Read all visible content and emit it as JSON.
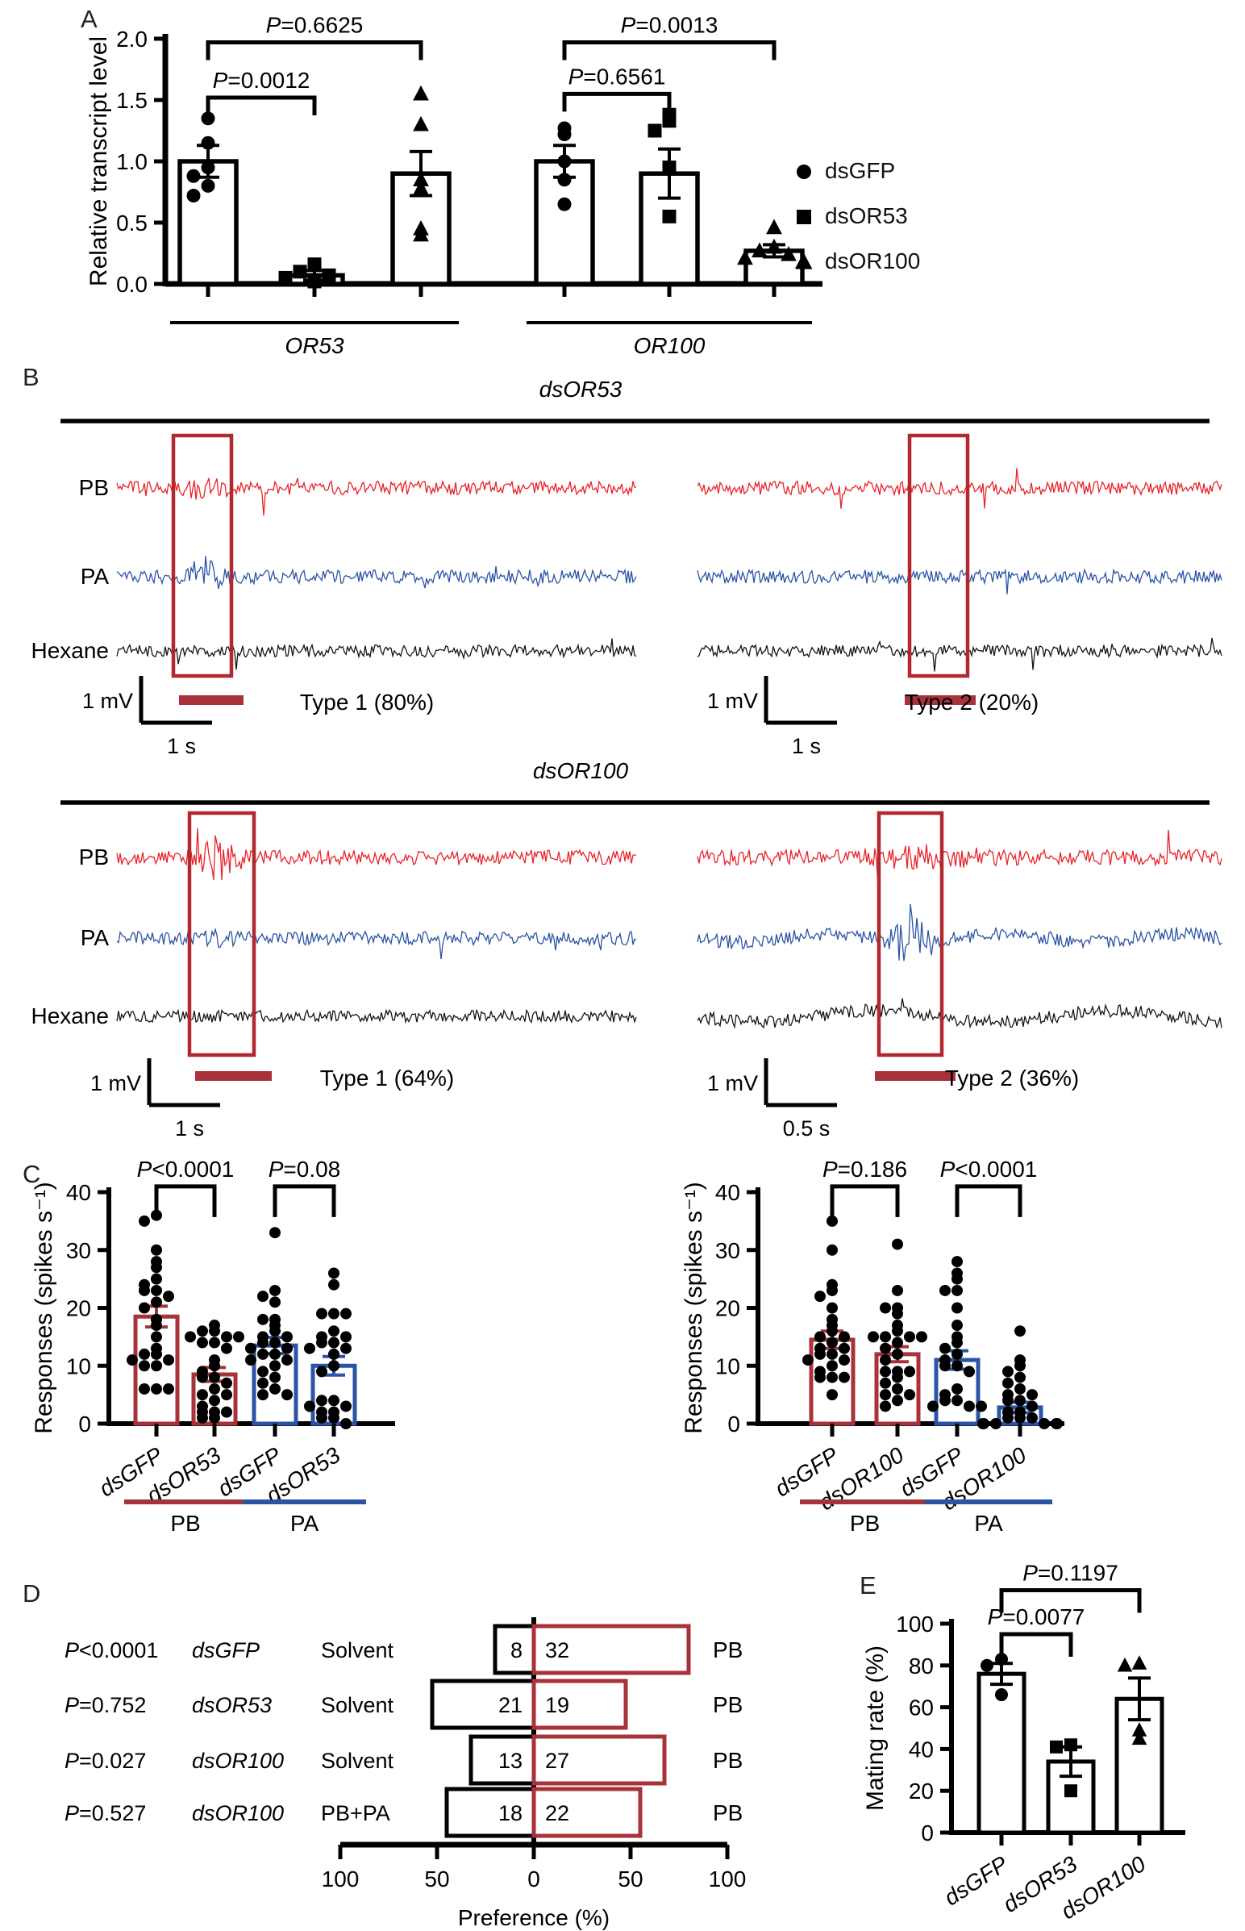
{
  "panels": {
    "a": "A",
    "b": "B",
    "c": "C",
    "d": "D",
    "e": "E"
  },
  "colors": {
    "black": "#000000",
    "dark_red": "#A8323A",
    "rect_red": "#B2282E",
    "blue": "#2B54A5",
    "trace_red": "#E8232A",
    "trace_blue": "#2B54A5",
    "trace_black": "#151515"
  },
  "legend": {
    "items": [
      {
        "marker": "circle",
        "label": "dsGFP"
      },
      {
        "marker": "square",
        "label": "dsOR53"
      },
      {
        "marker": "triangle",
        "label": "dsOR100"
      }
    ]
  },
  "panel_b": {
    "trace_labels": [
      "PB",
      "PA",
      "Hexane"
    ],
    "sections": [
      {
        "title": "dsOR53",
        "recordings": [
          {
            "type_label": "Type 1 (80%)",
            "scale_v": "1 mV",
            "scale_h": "1 s"
          },
          {
            "type_label": "Type 2 (20%)",
            "scale_v": "1 mV",
            "scale_h": "1 s"
          }
        ]
      },
      {
        "title": "dsOR100",
        "recordings": [
          {
            "type_label": "Type 1 (64%)",
            "scale_v": "1 mV",
            "scale_h": "1 s"
          },
          {
            "type_label": "Type 2 (36%)",
            "scale_v": "1 mV",
            "scale_h": "0.5 s"
          }
        ]
      }
    ]
  },
  "chart_data": [
    {
      "id": "A",
      "type": "bar",
      "ylabel": "Relative transcript level",
      "ylim": [
        0,
        2.0
      ],
      "yticks": [
        "0.0",
        "0.5",
        "1.0",
        "1.5",
        "2.0"
      ],
      "categories": [
        "dsGFP",
        "dsOR53",
        "dsOR100",
        "dsGFP",
        "dsOR53",
        "dsOR100"
      ],
      "group_labels": [
        "OR53",
        "OR100"
      ],
      "values": [
        1.0,
        0.07,
        0.9,
        1.0,
        0.9,
        0.27
      ],
      "errors": [
        0.13,
        0.04,
        0.18,
        0.13,
        0.2,
        0.05
      ],
      "markers": [
        "circle",
        "square",
        "triangle",
        "circle",
        "square",
        "triangle"
      ],
      "points": [
        [
          1.35,
          1.15,
          0.95,
          0.88,
          0.8,
          0.72
        ],
        [
          0.16,
          0.1,
          0.07,
          0.05,
          0.02
        ],
        [
          1.55,
          1.3,
          0.85,
          0.78,
          0.45,
          0.4
        ],
        [
          1.27,
          1.22,
          1.0,
          0.85,
          0.65
        ],
        [
          1.38,
          1.33,
          1.25,
          0.95,
          0.55
        ],
        [
          0.46,
          0.3,
          0.27,
          0.24,
          0.21,
          0.18
        ]
      ],
      "significance": [
        {
          "from": 0,
          "to": 1,
          "label": "P=0.0012",
          "y": 1.52
        },
        {
          "from": 0,
          "to": 2,
          "label": "P=0.6625",
          "y": 1.97
        },
        {
          "from": 3,
          "to": 4,
          "label": "P=0.6561",
          "y": 1.55
        },
        {
          "from": 3,
          "to": 5,
          "label": "P=0.0013",
          "y": 1.97
        }
      ],
      "legend": [
        "dsGFP",
        "dsOR53",
        "dsOR100"
      ]
    },
    {
      "id": "C-left",
      "type": "bar",
      "ylabel": "Responses (spikes s⁻¹)",
      "ylim": [
        0,
        40
      ],
      "yticks": [
        "0",
        "10",
        "20",
        "30",
        "40"
      ],
      "categories": [
        "dsGFP",
        "dsOR53",
        "dsGFP",
        "dsOR53"
      ],
      "values": [
        18.5,
        8.5,
        13.5,
        10
      ],
      "errors": [
        1.8,
        1.2,
        1.4,
        1.6
      ],
      "bar_colors": [
        "dark_red",
        "dark_red",
        "blue",
        "blue"
      ],
      "points": [
        [
          36,
          35,
          30,
          28,
          27,
          25,
          24,
          23,
          23,
          22,
          21,
          20,
          18,
          17,
          15,
          13,
          12,
          12,
          11,
          11,
          10,
          10,
          6,
          6,
          6
        ],
        [
          17,
          16,
          16,
          15,
          15,
          15,
          14,
          14,
          13,
          11,
          10,
          9,
          8,
          8,
          7,
          6,
          5,
          5,
          4,
          3,
          2,
          2,
          2,
          1,
          1
        ],
        [
          33,
          23,
          22,
          21,
          18,
          18,
          17,
          16,
          15,
          15,
          14,
          14,
          13,
          13,
          12,
          12,
          11,
          11,
          10,
          9,
          8,
          7,
          6,
          5,
          5
        ],
        [
          26,
          24,
          19,
          19,
          19,
          16,
          15,
          15,
          14,
          14,
          13,
          13,
          12,
          10,
          9,
          4,
          4,
          3,
          3,
          2,
          2,
          1,
          1,
          0
        ]
      ],
      "significance": [
        {
          "from": 0,
          "to": 1,
          "label": "P<0.0001",
          "y": 41
        },
        {
          "from": 2,
          "to": 3,
          "label": "P=0.08",
          "y": 41
        }
      ],
      "groups": [
        {
          "label": "PB",
          "bars": [
            0,
            1
          ],
          "color": "dark_red"
        },
        {
          "label": "PA",
          "bars": [
            2,
            3
          ],
          "color": "blue"
        }
      ]
    },
    {
      "id": "C-right",
      "type": "bar",
      "ylabel": "Responses (spikes s⁻¹)",
      "ylim": [
        0,
        40
      ],
      "yticks": [
        "0",
        "10",
        "20",
        "30",
        "40"
      ],
      "categories": [
        "dsGFP",
        "dsOR100",
        "dsGFP",
        "dsOR100"
      ],
      "values": [
        14.5,
        12,
        11,
        2.8
      ],
      "errors": [
        1.5,
        1.3,
        1.6,
        0.9
      ],
      "bar_colors": [
        "dark_red",
        "dark_red",
        "blue",
        "blue"
      ],
      "points": [
        [
          35,
          30,
          24,
          23,
          22,
          20,
          18,
          17,
          16,
          15,
          15,
          14,
          13,
          13,
          12,
          12,
          11,
          11,
          10,
          9,
          8,
          8,
          8,
          5
        ],
        [
          31,
          23,
          20,
          20,
          19,
          17,
          16,
          15,
          15,
          15,
          15,
          14,
          13,
          12,
          11,
          9,
          9,
          9,
          8,
          7,
          6,
          5,
          5,
          4,
          3
        ],
        [
          28,
          26,
          25,
          23,
          23,
          20,
          17,
          15,
          14,
          13,
          12,
          11,
          10,
          10,
          9,
          6,
          5,
          4,
          4,
          3,
          3,
          3
        ],
        [
          16,
          11,
          10,
          9,
          8,
          7,
          6,
          5,
          5,
          4,
          4,
          3,
          2,
          2,
          1,
          1,
          1,
          0,
          0,
          0,
          0,
          0,
          0
        ]
      ],
      "significance": [
        {
          "from": 0,
          "to": 1,
          "label": "P=0.186",
          "y": 41
        },
        {
          "from": 2,
          "to": 3,
          "label": "P<0.0001",
          "y": 41
        }
      ],
      "groups": [
        {
          "label": "PB",
          "bars": [
            0,
            1
          ],
          "color": "dark_red"
        },
        {
          "label": "PA",
          "bars": [
            2,
            3
          ],
          "color": "blue"
        }
      ]
    },
    {
      "id": "D",
      "type": "diverging_bar",
      "xlabel": "Preference (%)",
      "xticks": [
        "100",
        "50",
        "0",
        "50",
        "100"
      ],
      "rows": [
        {
          "p": "P<0.0001",
          "treatment": "dsGFP",
          "left_label": "Solvent",
          "left_count": 8,
          "right_count": 32,
          "right_label": "PB"
        },
        {
          "p": "P=0.752",
          "treatment": "dsOR53",
          "left_label": "Solvent",
          "left_count": 21,
          "right_count": 19,
          "right_label": "PB"
        },
        {
          "p": "P=0.027",
          "treatment": "dsOR100",
          "left_label": "Solvent",
          "left_count": 13,
          "right_count": 27,
          "right_label": "PB"
        },
        {
          "p": "P=0.527",
          "treatment": "dsOR100",
          "left_label": "PB+PA",
          "left_count": 18,
          "right_count": 22,
          "right_label": "PB"
        }
      ]
    },
    {
      "id": "E",
      "type": "bar",
      "ylabel": "Mating rate (%)",
      "ylim": [
        0,
        100
      ],
      "yticks": [
        "0",
        "20",
        "40",
        "60",
        "80",
        "100"
      ],
      "categories": [
        "dsGFP",
        "dsOR53",
        "dsOR100"
      ],
      "values": [
        76,
        34,
        64
      ],
      "errors": [
        5,
        7,
        10
      ],
      "markers": [
        "circle",
        "square",
        "triangle"
      ],
      "points": [
        [
          83,
          80,
          66
        ],
        [
          42,
          41,
          20
        ],
        [
          81,
          80,
          49,
          45
        ]
      ],
      "significance": [
        {
          "from": 0,
          "to": 1,
          "label": "P=0.0077",
          "y": 95
        },
        {
          "from": 0,
          "to": 2,
          "label": "P=0.1197",
          "y": 116
        }
      ]
    }
  ]
}
